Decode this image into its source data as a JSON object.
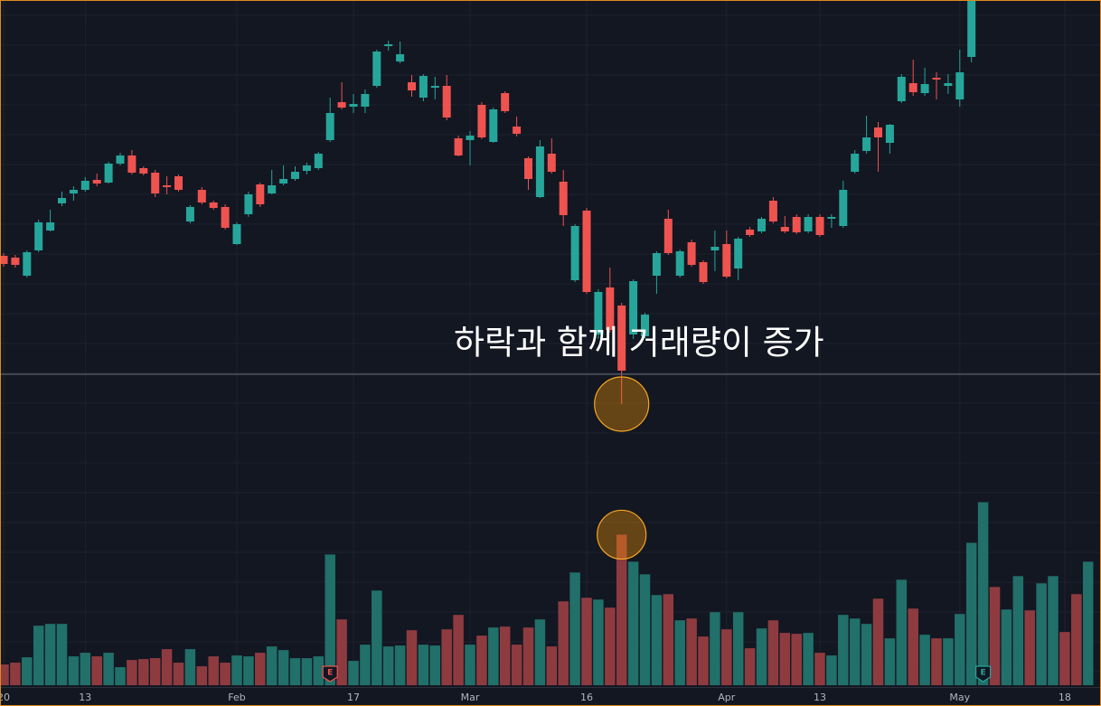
{
  "chart_data": {
    "type": "candlestick",
    "annotation": "하락과 함께 거래량이 증가",
    "categories": [
      "20",
      null,
      null,
      null,
      null,
      null,
      null,
      "13",
      null,
      null,
      null,
      null,
      null,
      null,
      null,
      null,
      null,
      null,
      null,
      null,
      "Feb",
      null,
      null,
      null,
      null,
      null,
      null,
      null,
      null,
      null,
      "17",
      null,
      null,
      null,
      null,
      null,
      null,
      null,
      null,
      null,
      "Mar",
      null,
      null,
      null,
      null,
      null,
      null,
      null,
      null,
      null,
      "16",
      null,
      null,
      null,
      null,
      null,
      null,
      null,
      null,
      null,
      null,
      null,
      "Apr",
      null,
      null,
      null,
      null,
      null,
      null,
      null,
      "13",
      null,
      null,
      null,
      null,
      null,
      null,
      null,
      null,
      null,
      null,
      null,
      "May",
      null,
      null,
      null,
      null,
      null,
      null,
      null,
      null,
      "18",
      null,
      null
    ],
    "open": [
      477,
      475,
      455,
      483,
      505,
      535,
      546,
      550,
      561,
      558,
      579,
      588,
      574,
      569,
      555,
      565,
      515,
      550,
      536,
      531,
      490,
      523,
      556,
      546,
      557,
      562,
      571,
      574,
      605,
      647,
      642,
      642,
      665,
      709,
      692,
      669,
      652,
      663,
      665,
      607,
      605,
      644,
      603,
      657,
      620,
      585,
      542,
      590,
      559,
      450,
      527,
      390,
      442,
      422,
      390,
      388,
      455,
      518,
      455,
      492,
      470,
      483,
      490,
      463,
      506,
      504,
      538,
      509,
      520,
      504,
      520,
      518,
      510,
      570,
      593,
      619,
      602,
      648,
      668,
      657,
      674,
      665,
      650,
      697,
      null,
      null,
      null,
      null,
      null,
      null,
      null,
      null,
      null,
      null
    ],
    "high": [
      480,
      478,
      483,
      517,
      528,
      548,
      554,
      564,
      568,
      581,
      591,
      594,
      576,
      572,
      565,
      567,
      533,
      553,
      538,
      534,
      514,
      548,
      558,
      572,
      577,
      576,
      580,
      592,
      652,
      669,
      656,
      661,
      705,
      715,
      714,
      677,
      678,
      675,
      677,
      610,
      615,
      647,
      641,
      659,
      631,
      587,
      605,
      607,
      572,
      512,
      530,
      440,
      464,
      425,
      451,
      414,
      482,
      528,
      484,
      495,
      472,
      505,
      505,
      498,
      509,
      520,
      542,
      521,
      523,
      523,
      523,
      523,
      560,
      594,
      632,
      625,
      623,
      678,
      694,
      685,
      680,
      678,
      705,
      780,
      null,
      null,
      null,
      null,
      null,
      null,
      null,
      null,
      null,
      null
    ],
    "low": [
      465,
      464,
      453,
      481,
      504,
      532,
      538,
      548,
      554,
      557,
      577,
      567,
      566,
      542,
      545,
      548,
      513,
      534,
      528,
      506,
      489,
      520,
      531,
      545,
      555,
      560,
      567,
      572,
      603,
      639,
      635,
      635,
      663,
      704,
      690,
      653,
      648,
      650,
      627,
      587,
      577,
      606,
      602,
      635,
      609,
      550,
      541,
      568,
      510,
      448,
      435,
      385,
      392,
      313,
      385,
      386,
      435,
      478,
      453,
      465,
      446,
      460,
      452,
      450,
      498,
      502,
      513,
      502,
      501,
      502,
      498,
      508,
      508,
      568,
      590,
      570,
      590,
      646,
      654,
      654,
      650,
      656,
      642,
      691,
      null,
      null,
      null,
      null,
      null,
      null,
      null,
      null,
      null,
      null
    ],
    "close": [
      468,
      467,
      481,
      514,
      514,
      541,
      550,
      560,
      557,
      579,
      588,
      569,
      568,
      546,
      553,
      550,
      531,
      536,
      530,
      508,
      512,
      545,
      534,
      555,
      562,
      570,
      577,
      590,
      635,
      641,
      645,
      656,
      703,
      711,
      700,
      660,
      676,
      665,
      630,
      588,
      610,
      608,
      639,
      637,
      612,
      562,
      598,
      570,
      522,
      510,
      437,
      437,
      395,
      350,
      449,
      412,
      480,
      480,
      482,
      467,
      448,
      487,
      454,
      496,
      500,
      518,
      515,
      504,
      503,
      520,
      500,
      520,
      550,
      590,
      608,
      608,
      622,
      675,
      658,
      667,
      672,
      668,
      680,
      770,
      null,
      null,
      null,
      null,
      null,
      null,
      null,
      null,
      null,
      null
    ],
    "ylim": [
      0,
      760
    ],
    "up_color": "#26a69a",
    "down_color": "#ef5350",
    "volume": {
      "values": [
        23,
        25,
        31,
        66,
        68,
        68,
        32,
        36,
        32,
        36,
        20,
        28,
        29,
        30,
        40,
        25,
        40,
        21,
        32,
        25,
        33,
        32,
        36,
        43,
        39,
        30,
        30,
        32,
        145,
        73,
        27,
        45,
        105,
        43,
        44,
        61,
        45,
        44,
        62,
        78,
        45,
        55,
        64,
        65,
        45,
        64,
        73,
        43,
        93,
        125,
        97,
        95,
        86,
        167,
        137,
        123,
        100,
        101,
        72,
        74,
        54,
        81,
        62,
        81,
        41,
        63,
        72,
        58,
        57,
        58,
        36,
        33,
        78,
        74,
        68,
        96,
        52,
        117,
        85,
        56,
        52,
        52,
        79,
        158,
        203,
        109,
        84,
        121,
        83,
        113,
        121,
        59,
        101,
        137
      ],
      "up": [
        false,
        false,
        true,
        true,
        true,
        true,
        true,
        true,
        false,
        true,
        true,
        false,
        false,
        false,
        false,
        false,
        true,
        false,
        false,
        false,
        true,
        true,
        false,
        true,
        true,
        true,
        true,
        true,
        true,
        false,
        true,
        true,
        true,
        true,
        true,
        false,
        true,
        true,
        false,
        false,
        true,
        false,
        true,
        false,
        false,
        false,
        true,
        false,
        false,
        true,
        false,
        true,
        false,
        false,
        true,
        true,
        true,
        false,
        true,
        false,
        false,
        true,
        false,
        true,
        false,
        true,
        false,
        false,
        false,
        true,
        false,
        true,
        true,
        true,
        true,
        false,
        true,
        true,
        false,
        true,
        false,
        true,
        true,
        true,
        true,
        false,
        true,
        true,
        false,
        true,
        true,
        false,
        false,
        true
      ],
      "up_color": "#21706a",
      "down_color": "#8e3b40",
      "vlim": [
        0,
        760
      ]
    },
    "markers": [
      {
        "index": 28,
        "label": "E",
        "color": "#ef5350"
      },
      {
        "index": 84,
        "label": "E",
        "color": "#26a69a"
      }
    ],
    "highlight_index": 53,
    "grid": true
  }
}
